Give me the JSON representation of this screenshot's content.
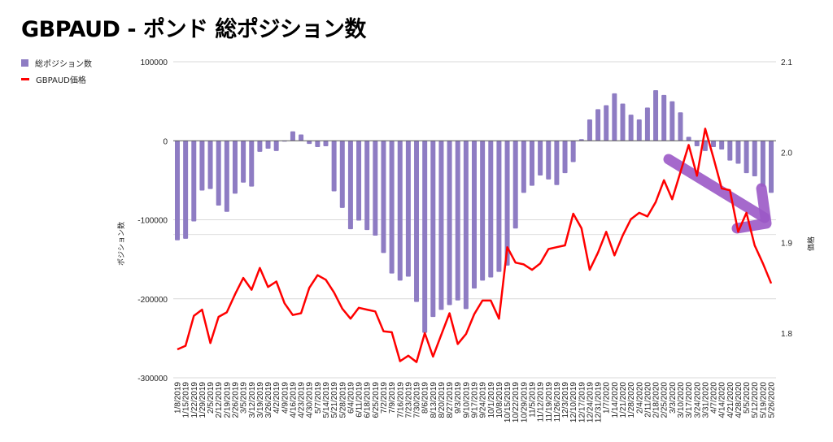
{
  "title": "GBPAUD - ポンド 総ポジション数",
  "legend": [
    {
      "label": "総ポジション数",
      "type": "bar",
      "color": "#8e7cc3"
    },
    {
      "label": "GBPAUD価格",
      "type": "line",
      "color": "#ff0000"
    }
  ],
  "annotation": {
    "type": "arrow",
    "direction": "down-right",
    "color": "#9b59c6"
  },
  "chart_data": {
    "type": "bar+line",
    "title": "GBPAUD - ポンド 総ポジション数",
    "xlabel": "",
    "ylabel": "ポジション数",
    "y2label": "価格",
    "ylim": [
      -300000,
      100000
    ],
    "y2lim": [
      1.75,
      2.1
    ],
    "yticks": [
      "100000",
      "0",
      "-100000",
      "-200000",
      "-300000"
    ],
    "y2ticks": [
      "2.1",
      "2.0",
      "1.9",
      "1.8"
    ],
    "grid": true,
    "legend_position": "top-left",
    "categories": [
      "1/8/2019",
      "1/15/2019",
      "1/22/2019",
      "1/29/2019",
      "2/5/2019",
      "2/12/2019",
      "2/19/2019",
      "2/26/2019",
      "3/5/2019",
      "3/12/2019",
      "3/19/2019",
      "3/26/2019",
      "4/2/2019",
      "4/9/2019",
      "4/16/2019",
      "4/23/2019",
      "4/30/2019",
      "5/7/2019",
      "5/14/2019",
      "5/21/2019",
      "5/28/2019",
      "6/4/2019",
      "6/11/2019",
      "6/18/2019",
      "6/25/2019",
      "7/2/2019",
      "7/9/2019",
      "7/16/2019",
      "7/23/2019",
      "7/30/2019",
      "8/6/2019",
      "8/13/2019",
      "8/20/2019",
      "8/27/2019",
      "9/3/2019",
      "9/10/2019",
      "9/17/2019",
      "9/24/2019",
      "10/1/2019",
      "10/8/2019",
      "10/15/2019",
      "10/22/2019",
      "10/29/2019",
      "11/5/2019",
      "11/12/2019",
      "11/19/2019",
      "11/26/2019",
      "12/3/2019",
      "12/10/2019",
      "12/17/2019",
      "12/24/2019",
      "12/31/2019",
      "1/7/2020",
      "1/14/2020",
      "1/21/2020",
      "1/28/2020",
      "2/4/2020",
      "2/11/2020",
      "2/18/2020",
      "2/25/2020",
      "3/3/2020",
      "3/10/2020",
      "3/17/2020",
      "3/24/2020",
      "3/31/2020",
      "4/7/2020",
      "4/14/2020",
      "4/21/2020",
      "4/28/2020",
      "5/5/2020",
      "5/12/2020",
      "5/19/2020",
      "5/26/2020"
    ],
    "series": [
      {
        "name": "総ポジション数",
        "type": "bar",
        "axis": "left",
        "color": "#8e7cc3",
        "values": [
          -126000,
          -124000,
          -102000,
          -63000,
          -61000,
          -82000,
          -90000,
          -67000,
          -53000,
          -58000,
          -14000,
          -10000,
          -13000,
          -1000,
          12000,
          8000,
          -4000,
          -8000,
          -7000,
          -64000,
          -85000,
          -112000,
          -101000,
          -113000,
          -120000,
          -142000,
          -168000,
          -177000,
          -172000,
          -204000,
          -243000,
          -223000,
          -214000,
          -208000,
          -202000,
          -213000,
          -187000,
          -177000,
          -173000,
          -166000,
          -158000,
          -111000,
          -66000,
          -57000,
          -44000,
          -49000,
          -56000,
          -41000,
          -27000,
          2000,
          27000,
          40000,
          45000,
          60000,
          47000,
          33000,
          27000,
          42000,
          64000,
          58000,
          50000,
          36000,
          5000,
          -7000,
          -13000,
          -8000,
          -11000,
          -25000,
          -29000,
          -41000,
          -45000,
          -58000,
          -66000
        ]
      },
      {
        "name": "GBPAUD価格",
        "type": "line",
        "axis": "right",
        "color": "#ff0000",
        "values": [
          1.782,
          1.786,
          1.819,
          1.826,
          1.789,
          1.818,
          1.823,
          1.843,
          1.861,
          1.848,
          1.872,
          1.851,
          1.857,
          1.833,
          1.82,
          1.822,
          1.85,
          1.864,
          1.859,
          1.845,
          1.827,
          1.816,
          1.828,
          1.826,
          1.824,
          1.802,
          1.801,
          1.769,
          1.775,
          1.768,
          1.8,
          1.774,
          1.798,
          1.822,
          1.788,
          1.799,
          1.821,
          1.836,
          1.836,
          1.816,
          1.895,
          1.878,
          1.876,
          1.87,
          1.877,
          1.893,
          1.895,
          1.897,
          1.932,
          1.916,
          1.87,
          1.889,
          1.912,
          1.886,
          1.908,
          1.926,
          1.933,
          1.929,
          1.945,
          1.969,
          1.948,
          1.978,
          2.008,
          1.974,
          2.026,
          1.994,
          1.96,
          1.958,
          1.912,
          1.933,
          1.897,
          1.877,
          1.855
        ]
      }
    ]
  }
}
